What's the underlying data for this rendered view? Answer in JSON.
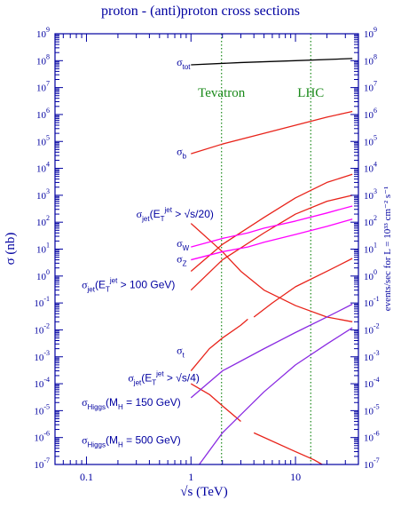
{
  "chart_data": {
    "type": "line",
    "title": "proton - (anti)proton cross sections",
    "xlabel": "√s   (TeV)",
    "ylabel": "σ  (nb)",
    "ylabel_right": "events/sec  for  L = 10³³ cm⁻² s⁻¹",
    "x_scale": "log",
    "y_scale": "log",
    "xlim": [
      0.05,
      40
    ],
    "ylim": [
      1e-07,
      1000000000.0
    ],
    "y_right_lim": [
      1e-07,
      1000000000.0
    ],
    "x_tick_labels": [
      {
        "value": 0.1,
        "label": "0.1"
      },
      {
        "value": 1,
        "label": "1"
      },
      {
        "value": 10,
        "label": "10"
      }
    ],
    "y_tick_labels": [
      {
        "value": 1000000000.0,
        "base": "10",
        "exp": "9"
      },
      {
        "value": 100000000.0,
        "base": "10",
        "exp": "8"
      },
      {
        "value": 10000000.0,
        "base": "10",
        "exp": "7"
      },
      {
        "value": 1000000.0,
        "base": "10",
        "exp": "6"
      },
      {
        "value": 100000.0,
        "base": "10",
        "exp": "5"
      },
      {
        "value": 10000.0,
        "base": "10",
        "exp": "4"
      },
      {
        "value": 1000.0,
        "base": "10",
        "exp": "3"
      },
      {
        "value": 100.0,
        "base": "10",
        "exp": "2"
      },
      {
        "value": 10.0,
        "base": "10",
        "exp": "1"
      },
      {
        "value": 1.0,
        "base": "10",
        "exp": "0"
      },
      {
        "value": 0.1,
        "base": "10",
        "exp": "-1"
      },
      {
        "value": 0.01,
        "base": "10",
        "exp": "-2"
      },
      {
        "value": 0.001,
        "base": "10",
        "exp": "-3"
      },
      {
        "value": 0.0001,
        "base": "10",
        "exp": "-4"
      },
      {
        "value": 1e-05,
        "base": "10",
        "exp": "-5"
      },
      {
        "value": 1e-06,
        "base": "10",
        "exp": "-6"
      },
      {
        "value": 1e-07,
        "base": "10",
        "exp": "-7"
      }
    ],
    "vlines": [
      {
        "x": 1.96,
        "label": "Tevatron",
        "label_y": 4500000.0,
        "color": "#1a8a1a"
      },
      {
        "x": 14,
        "label": "LHC",
        "label_y": 4500000.0,
        "color": "#1a8a1a"
      }
    ],
    "series": [
      {
        "id": "sigma-tot",
        "color": "#000000",
        "points": [
          [
            1,
            70000000.0
          ],
          [
            3,
            85000000.0
          ],
          [
            10,
            100000000.0
          ],
          [
            35,
            120000000.0
          ]
        ]
      },
      {
        "id": "sigma-b",
        "color": "#e8231a",
        "points": [
          [
            1,
            35000.0
          ],
          [
            2,
            80000.0
          ],
          [
            5,
            200000.0
          ],
          [
            10,
            400000.0
          ],
          [
            20,
            800000.0
          ],
          [
            35,
            1300000.0
          ]
        ]
      },
      {
        "id": "sigma-jet-sqrt-s-20",
        "color": "#e8231a",
        "points": [
          [
            1,
            1.5
          ],
          [
            2,
            15
          ],
          [
            5,
            150
          ],
          [
            10,
            800
          ],
          [
            20,
            3000
          ],
          [
            35,
            6000
          ]
        ]
      },
      {
        "id": "sigma-jet-100gev",
        "color": "#e8231a",
        "points": [
          [
            1,
            0.3
          ],
          [
            2,
            4
          ],
          [
            5,
            40
          ],
          [
            10,
            200
          ],
          [
            20,
            600
          ],
          [
            35,
            1000
          ]
        ]
      },
      {
        "id": "sigma-jet-sqrt-s-4",
        "color": "#e8231a",
        "points": [
          [
            1,
            90
          ],
          [
            2,
            8
          ],
          [
            3,
            1.5
          ],
          [
            5,
            0.3
          ],
          [
            10,
            0.08
          ],
          [
            20,
            0.03
          ],
          [
            35,
            0.02
          ]
        ]
      },
      {
        "id": "sigma-W",
        "color": "#ff00ff",
        "points": [
          [
            1,
            12
          ],
          [
            2,
            25
          ],
          [
            3.5,
            40
          ],
          [
            5,
            60
          ],
          [
            10,
            110
          ],
          [
            20,
            220
          ],
          [
            35,
            400
          ]
        ]
      },
      {
        "id": "sigma-Z",
        "color": "#ff00ff",
        "points": [
          [
            1,
            4
          ],
          [
            2,
            8
          ],
          [
            3.5,
            12
          ],
          [
            5,
            18
          ],
          [
            10,
            35
          ],
          [
            20,
            70
          ],
          [
            35,
            130
          ]
        ]
      },
      {
        "id": "sigma-t-tevatron",
        "color": "#e8231a",
        "points": [
          [
            1,
            0.0003
          ],
          [
            1.5,
            0.002
          ],
          [
            2,
            0.005
          ],
          [
            3,
            0.015
          ],
          [
            3.5,
            0.025
          ]
        ]
      },
      {
        "id": "sigma-t-lhc",
        "color": "#e8231a",
        "points": [
          [
            4,
            0.03
          ],
          [
            6,
            0.1
          ],
          [
            10,
            0.4
          ],
          [
            20,
            1.5
          ],
          [
            35,
            4.5
          ]
        ]
      },
      {
        "id": "sigma-jet-low-1",
        "color": "#e8231a",
        "points": [
          [
            1,
            0.0001
          ],
          [
            1.5,
            4e-05
          ],
          [
            2,
            1.5e-05
          ],
          [
            3,
            4e-06
          ]
        ]
      },
      {
        "id": "sigma-jet-low-2",
        "color": "#e8231a",
        "points": [
          [
            4,
            1.5e-06
          ],
          [
            10,
            3e-07
          ],
          [
            15,
            1.5e-07
          ],
          [
            18,
            1e-07
          ]
        ]
      },
      {
        "id": "sigma-higgs-150",
        "color": "#8a2be2",
        "points": [
          [
            1,
            3e-05
          ],
          [
            2,
            0.0003
          ],
          [
            5,
            0.002
          ],
          [
            10,
            0.008
          ],
          [
            20,
            0.03
          ],
          [
            35,
            0.09
          ]
        ]
      },
      {
        "id": "sigma-higgs-500",
        "color": "#8a2be2",
        "points": [
          [
            1.2,
            1e-07
          ],
          [
            2,
            1.5e-06
          ],
          [
            5,
            5e-05
          ],
          [
            10,
            0.0005
          ],
          [
            20,
            0.003
          ],
          [
            35,
            0.012
          ]
        ]
      }
    ],
    "annotations": [
      {
        "id": "label-sigma-tot",
        "sym": "σ",
        "sub": "tot",
        "x": 0.73,
        "y": 65000000.0,
        "color": "#0000a0"
      },
      {
        "id": "label-sigma-b",
        "sym": "σ",
        "sub": "b",
        "x": 0.73,
        "y": 32000.0,
        "color": "#0000a0"
      },
      {
        "id": "label-sigma-jet-sqrt-s-20",
        "sym": "σ",
        "sub": "jet",
        "rest": "(E",
        "rest_sub": "T",
        "rest_sup": "jet",
        "tail": " > √s/20)",
        "x": 0.3,
        "y": 150,
        "color": "#0000a0"
      },
      {
        "id": "label-sigma-W",
        "sym": "σ",
        "sub": "W",
        "x": 0.73,
        "y": 12,
        "color": "#0000a0"
      },
      {
        "id": "label-sigma-Z",
        "sym": "σ",
        "sub": "Z",
        "x": 0.73,
        "y": 3.2,
        "color": "#0000a0"
      },
      {
        "id": "label-sigma-jet-100gev",
        "sym": "σ",
        "sub": "jet",
        "rest": "(E",
        "rest_sub": "T",
        "rest_sup": "jet",
        "tail": " > 100 GeV)",
        "x": 0.09,
        "y": 0.35,
        "color": "#0000a0"
      },
      {
        "id": "label-sigma-t",
        "sym": "σ",
        "sub": "t",
        "x": 0.73,
        "y": 0.0013,
        "color": "#0000a0"
      },
      {
        "id": "label-sigma-jet-sqrt-s-4",
        "sym": "σ",
        "sub": "jet",
        "rest": "(E",
        "rest_sub": "T",
        "rest_sup": "jet",
        "tail": " > √s/4)",
        "x": 0.25,
        "y": 0.00012,
        "color": "#0000a0"
      },
      {
        "id": "label-sigma-higgs-150",
        "sym": "σ",
        "sub": "Higgs",
        "rest": "(M",
        "rest_sub": "H",
        "tail": " = 150 GeV)",
        "x": 0.09,
        "y": 1.5e-05,
        "color": "#0000a0"
      },
      {
        "id": "label-sigma-higgs-500",
        "sym": "σ",
        "sub": "Higgs",
        "rest": "(M",
        "rest_sub": "H",
        "tail": " = 500 GeV)",
        "x": 0.09,
        "y": 6e-07,
        "color": "#0000a0"
      }
    ],
    "colors": {
      "axis": "#0000a0",
      "title": "#0000a0",
      "vline": "#1a8a1a"
    }
  }
}
